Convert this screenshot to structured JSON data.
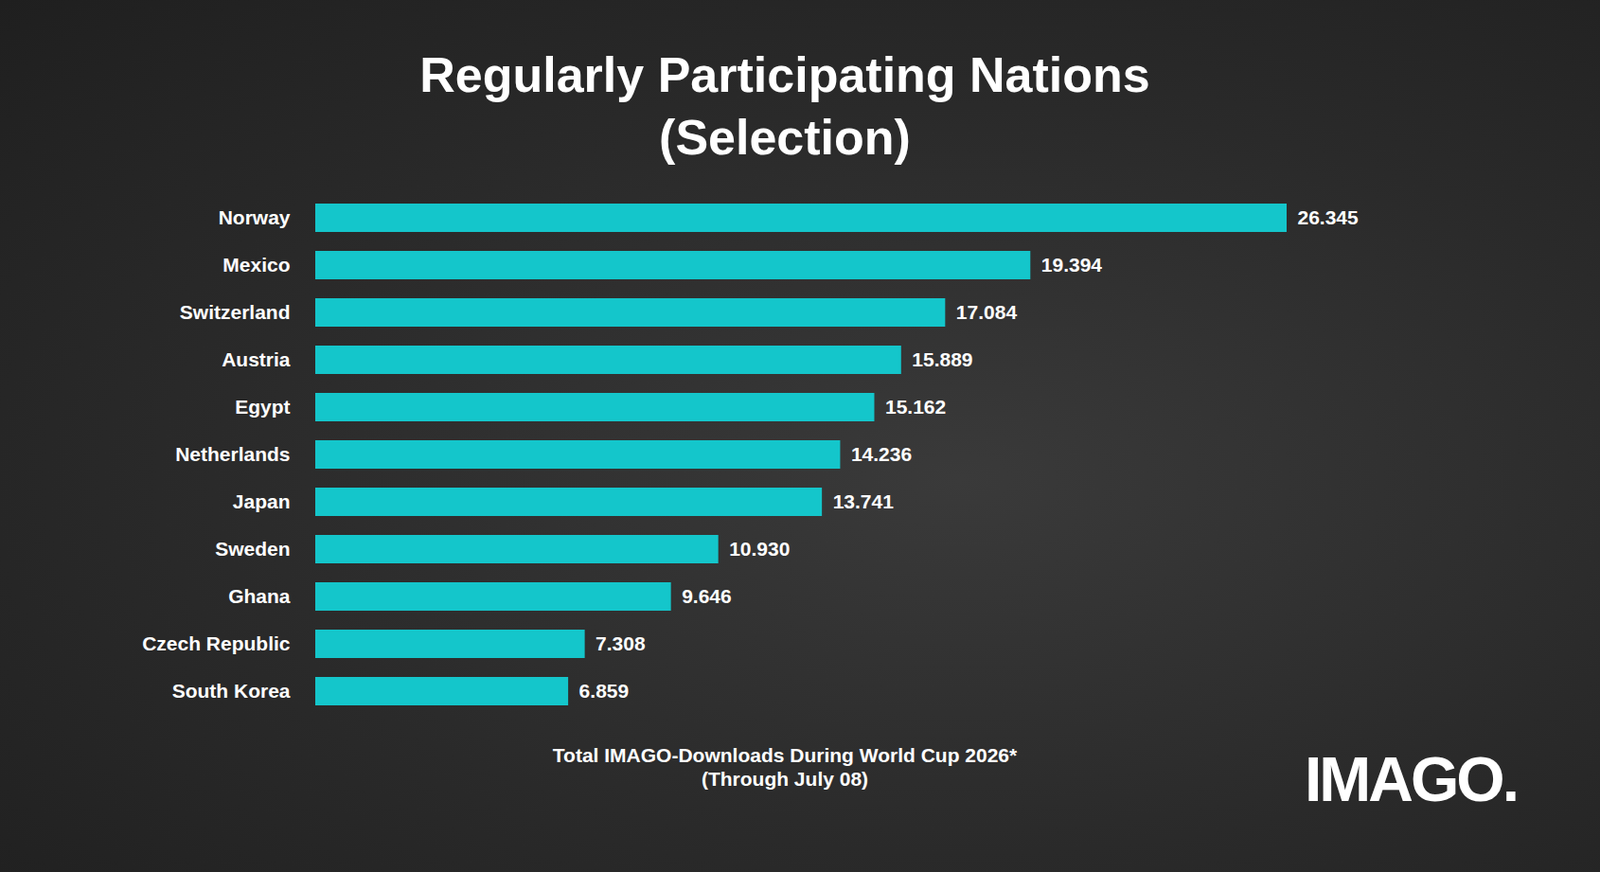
{
  "chart_data": {
    "type": "bar",
    "orientation": "horizontal",
    "title": "Regularly Participating Nations",
    "subtitle": "(Selection)",
    "caption": "Total IMAGO-Downloads During World Cup 2026*",
    "note": "(Through July 08)",
    "source": "IMAGO.",
    "categories": [
      "Norway",
      "Mexico",
      "Switzerland",
      "Austria",
      "Egypt",
      "Netherlands",
      "Japan",
      "Sweden",
      "Ghana",
      "Czech Republic",
      "South Korea"
    ],
    "values": [
      26345,
      19394,
      17084,
      15889,
      15162,
      14236,
      13741,
      10930,
      9646,
      7308,
      6859
    ],
    "value_labels": [
      "26.345",
      "19.394",
      "17.084",
      "15.889",
      "15.162",
      "14.236",
      "13.741",
      "10.930",
      "9.646",
      "7.308",
      "6.859"
    ],
    "data_labels": true,
    "color": "#14c6cb",
    "xlim": [
      0,
      26345
    ],
    "grid": false,
    "tick_labels": "y"
  }
}
